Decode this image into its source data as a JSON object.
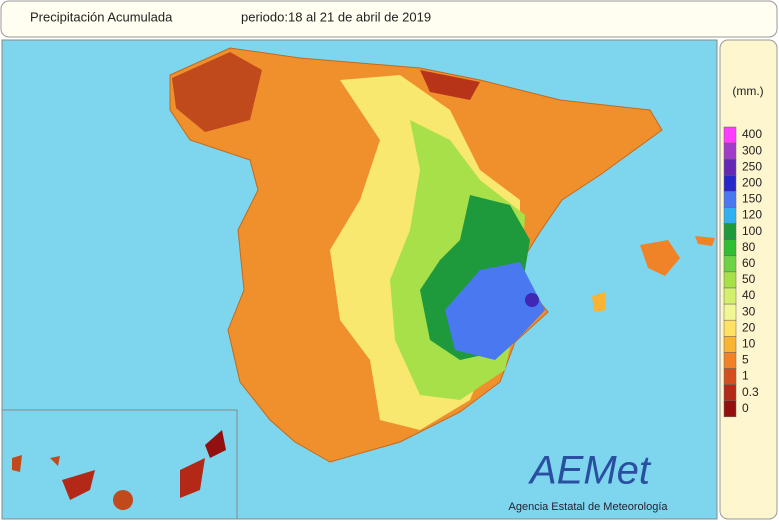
{
  "header": {
    "title": "Precipitación Acumulada",
    "period": "periodo:18 al 21 de abril de 2019"
  },
  "legend": {
    "unit": "(mm.)",
    "items": [
      {
        "label": "400",
        "color": "#ff3cff"
      },
      {
        "label": "300",
        "color": "#a03cc8"
      },
      {
        "label": "250",
        "color": "#6428b4"
      },
      {
        "label": "200",
        "color": "#2828c8"
      },
      {
        "label": "150",
        "color": "#4a78f0"
      },
      {
        "label": "120",
        "color": "#30b0f0"
      },
      {
        "label": "100",
        "color": "#1e9a3c"
      },
      {
        "label": "80",
        "color": "#32be32"
      },
      {
        "label": "60",
        "color": "#6ed246"
      },
      {
        "label": "50",
        "color": "#a8e04a"
      },
      {
        "label": "40",
        "color": "#d2f06e"
      },
      {
        "label": "30",
        "color": "#f0f896"
      },
      {
        "label": "20",
        "color": "#ffe164"
      },
      {
        "label": "10",
        "color": "#f8b432"
      },
      {
        "label": "5",
        "color": "#f08228"
      },
      {
        "label": "1",
        "color": "#d25020"
      },
      {
        "label": "0.3",
        "color": "#b42818"
      },
      {
        "label": "0",
        "color": "#921010"
      }
    ]
  },
  "logo": {
    "name": "AEMet",
    "subtitle": "Agencia Estatal de Meteorología"
  }
}
